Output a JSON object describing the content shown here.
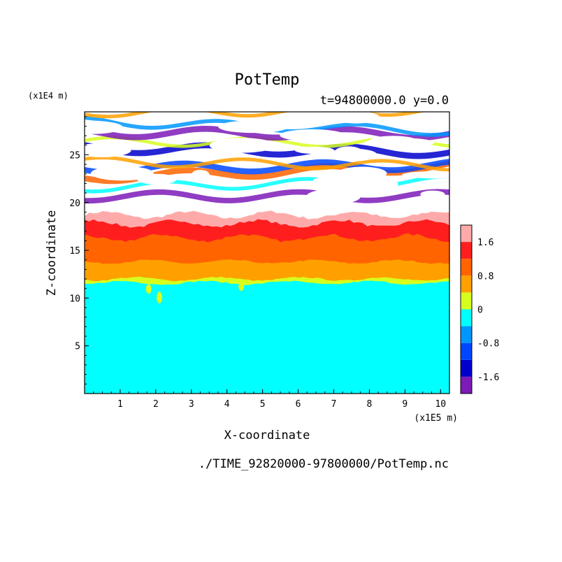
{
  "chart_data": {
    "type": "heatmap",
    "title": "PotTemp",
    "subtitle": "t=94800000.0 y=0.0",
    "xlabel": "X-coordinate",
    "ylabel": "Z-coordinate",
    "x_unit": "(x1E5 m)",
    "y_unit": "(x1E4 m)",
    "footer": "./TIME_92820000-97800000/PotTemp.nc",
    "xlim": [
      0,
      10.25
    ],
    "ylim": [
      0,
      29.5
    ],
    "x_ticks": [
      1,
      2,
      3,
      4,
      5,
      6,
      7,
      8,
      9,
      10
    ],
    "y_ticks": [
      5,
      10,
      15,
      20,
      25
    ],
    "colorbar": {
      "levels": [
        -2.0,
        -1.6,
        -1.2,
        -0.8,
        -0.4,
        0.0,
        0.4,
        0.8,
        1.2,
        1.6,
        2.0
      ],
      "colors": [
        "#7d1ab8",
        "#0000cd",
        "#0046ff",
        "#0096ff",
        "#00ffff",
        "#d7ff1e",
        "#ffa000",
        "#ff6400",
        "#ff1e1e",
        "#ffaaaa"
      ],
      "tick_labels": [
        {
          "value": 1.6,
          "label": "1.6"
        },
        {
          "value": 0.8,
          "label": "0.8"
        },
        {
          "value": 0.0,
          "label": "0"
        },
        {
          "value": -0.8,
          "label": "-0.8"
        },
        {
          "value": -1.6,
          "label": "-1.6"
        }
      ]
    },
    "bands": [
      {
        "name": "below -0.4 to 0",
        "z_bottom": 0.0,
        "z_top": 11.6,
        "color": "#00ffff"
      },
      {
        "name": "0 to 0.4",
        "z_bottom": 11.6,
        "z_top": 12.0,
        "color": "#d7ff1e"
      },
      {
        "name": "0.4 to 0.8",
        "z_bottom": 12.0,
        "z_top": 13.8,
        "color": "#ffa000"
      },
      {
        "name": "0.8 to 1.2",
        "z_bottom": 13.8,
        "z_top": 16.3,
        "color": "#ff6400"
      },
      {
        "name": "1.2 to 1.6",
        "z_bottom": 16.3,
        "z_top": 17.8,
        "color": "#ff1e1e"
      },
      {
        "name": "1.6 to 2.0",
        "z_bottom": 17.8,
        "z_top": 18.7,
        "color": "#ffaaaa"
      }
    ],
    "upper_region": {
      "z_bottom": 20.2,
      "z_top": 29.5,
      "description": "striated wave pattern of mixed positive and negative anomalies"
    }
  }
}
